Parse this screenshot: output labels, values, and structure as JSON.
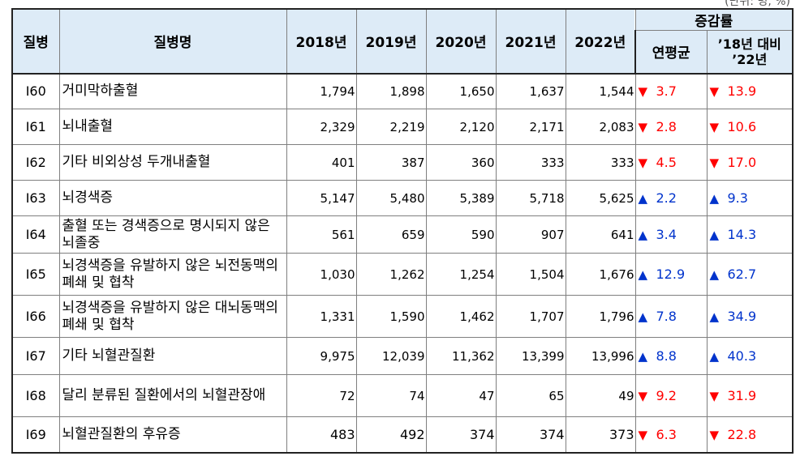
{
  "corner_text": "(단위: 명, %)",
  "header": {
    "code": "질병",
    "name": "질병명",
    "years": [
      "2018년",
      "2019년",
      "2020년",
      "2021년",
      "2022년"
    ],
    "change_group": "증감률",
    "annual_avg": "연평균",
    "vs_line1": "’18년 대비",
    "vs_line2": "’22년"
  },
  "colors": {
    "header_bg": "#ddebf7",
    "down": "#ff0000",
    "up": "#0033cc"
  },
  "rows": [
    {
      "code": "I60",
      "name": "거미막하출혈",
      "v": [
        "1,794",
        "1,898",
        "1,650",
        "1,637",
        "1,544"
      ],
      "dir": "down",
      "avg": "3.7",
      "vs": "13.9"
    },
    {
      "code": "I61",
      "name": "뇌내출혈",
      "v": [
        "2,329",
        "2,219",
        "2,120",
        "2,171",
        "2,083"
      ],
      "dir": "down",
      "avg": "2.8",
      "vs": "10.6"
    },
    {
      "code": "I62",
      "name": "기타 비외상성 두개내출혈",
      "v": [
        "401",
        "387",
        "360",
        "333",
        "333"
      ],
      "dir": "down",
      "avg": "4.5",
      "vs": "17.0"
    },
    {
      "code": "I63",
      "name": "뇌경색증",
      "v": [
        "5,147",
        "5,480",
        "5,389",
        "5,718",
        "5,625"
      ],
      "dir": "up",
      "avg": "2.2",
      "vs": "9.3"
    },
    {
      "code": "I64",
      "name": "출혈 또는 경색증으로 명시되지 않은 뇌졸중",
      "v": [
        "561",
        "659",
        "590",
        "907",
        "641"
      ],
      "dir": "up",
      "avg": "3.4",
      "vs": "14.3"
    },
    {
      "code": "I65",
      "name": "뇌경색증을 유발하지 않은 뇌전동맥의 폐쇄 및 협착",
      "v": [
        "1,030",
        "1,262",
        "1,254",
        "1,504",
        "1,676"
      ],
      "dir": "up",
      "avg": "12.9",
      "vs": "62.7"
    },
    {
      "code": "I66",
      "name": "뇌경색증을 유발하지 않은 대뇌동맥의 폐쇄 및 협착",
      "v": [
        "1,331",
        "1,590",
        "1,462",
        "1,707",
        "1,796"
      ],
      "dir": "up",
      "avg": "7.8",
      "vs": "34.9"
    },
    {
      "code": "I67",
      "name": "기타 뇌혈관질환",
      "v": [
        "9,975",
        "12,039",
        "11,362",
        "13,399",
        "13,996"
      ],
      "dir": "up",
      "avg": "8.8",
      "vs": "40.3"
    },
    {
      "code": "I68",
      "name": "달리 분류된 질환에서의 뇌혈관장애",
      "v": [
        "72",
        "74",
        "47",
        "65",
        "49"
      ],
      "dir": "down",
      "avg": "9.2",
      "vs": "31.9"
    },
    {
      "code": "I69",
      "name": "뇌혈관질환의 후유증",
      "v": [
        "483",
        "492",
        "374",
        "374",
        "373"
      ],
      "dir": "down",
      "avg": "6.3",
      "vs": "22.8"
    }
  ]
}
